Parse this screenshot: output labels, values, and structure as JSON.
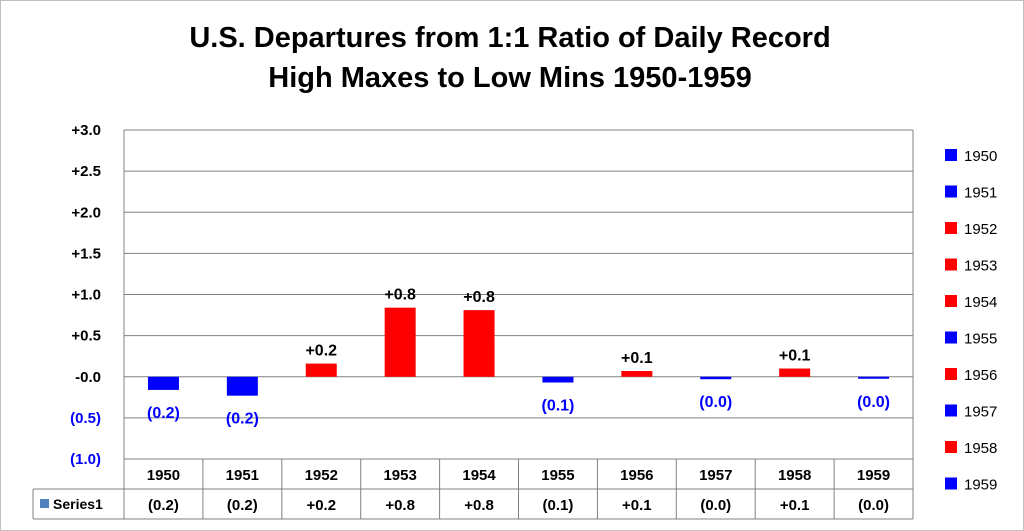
{
  "chart_data": {
    "type": "bar",
    "title_lines": [
      "U.S. Departures from 1:1 Ratio of Daily Record",
      "High Maxes to Low Mins 1950-1959"
    ],
    "categories": [
      "1950",
      "1951",
      "1952",
      "1953",
      "1954",
      "1955",
      "1956",
      "1957",
      "1958",
      "1959"
    ],
    "series": [
      {
        "name": "Series1",
        "values": [
          -0.16,
          -0.23,
          0.16,
          0.84,
          0.81,
          -0.07,
          0.07,
          -0.03,
          0.1,
          -0.02
        ],
        "data_labels": [
          "(0.2)",
          "(0.2)",
          "+0.2",
          "+0.8",
          "+0.8",
          "(0.1)",
          "+0.1",
          "(0.0)",
          "+0.1",
          "(0.0)"
        ],
        "bar_colors": [
          "#0000ff",
          "#0000ff",
          "#ff0000",
          "#ff0000",
          "#ff0000",
          "#0000ff",
          "#ff0000",
          "#0000ff",
          "#ff0000",
          "#0000ff"
        ],
        "marker_color": "#4f81bd"
      }
    ],
    "y_ticks": [
      {
        "value": 3.0,
        "label": "+3.0"
      },
      {
        "value": 2.5,
        "label": "+2.5"
      },
      {
        "value": 2.0,
        "label": "+2.0"
      },
      {
        "value": 1.5,
        "label": "+1.5"
      },
      {
        "value": 1.0,
        "label": "+1.0"
      },
      {
        "value": 0.5,
        "label": "+0.5"
      },
      {
        "value": 0.0,
        "label": "-0.0"
      },
      {
        "value": -0.5,
        "label": "(0.5)"
      },
      {
        "value": -1.0,
        "label": "(1.0)"
      }
    ],
    "ylim": [
      -1.0,
      3.0
    ],
    "grid": true,
    "legend_position": "right",
    "legend_entries": [
      "1950",
      "1951",
      "1952",
      "1953",
      "1954",
      "1955",
      "1956",
      "1957",
      "1958",
      "1959"
    ],
    "data_table": true,
    "colors": {
      "positive": "#ff0000",
      "negative": "#0000ff",
      "negative_label": "#0000ff",
      "positive_label": "#000000",
      "grid": "#808080"
    }
  }
}
